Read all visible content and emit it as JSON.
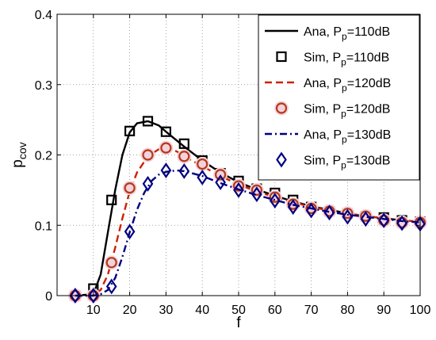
{
  "chart_data": {
    "type": "line",
    "xlabel": "f",
    "ylabel": "p",
    "ylabel_sub": "cov",
    "xlim": [
      0,
      100
    ],
    "ylim": [
      0,
      0.4
    ],
    "xticks": [
      10,
      20,
      30,
      40,
      50,
      60,
      70,
      80,
      90,
      100
    ],
    "yticks": [
      0,
      0.1,
      0.2,
      0.3,
      0.4
    ],
    "ytick_labels": [
      "0",
      "0.1",
      "0.2",
      "0.3",
      "0.4"
    ],
    "grid": true,
    "legend_position": "top-right",
    "series": [
      {
        "name": "Ana, P_p=110dB",
        "label_main": "Ana, P",
        "label_sub": "p",
        "label_rest": "=110dB",
        "kind": "line",
        "style": "solid",
        "color": "#000000",
        "x": [
          5,
          10,
          12,
          14,
          16,
          18,
          20,
          22,
          25,
          28,
          30,
          35,
          40,
          45,
          50,
          55,
          60,
          65,
          70,
          75,
          80,
          85,
          90,
          95,
          100
        ],
        "y": [
          0,
          0.002,
          0.03,
          0.09,
          0.15,
          0.2,
          0.232,
          0.245,
          0.248,
          0.242,
          0.233,
          0.212,
          0.192,
          0.175,
          0.161,
          0.151,
          0.142,
          0.134,
          0.127,
          0.122,
          0.117,
          0.113,
          0.11,
          0.107,
          0.105
        ]
      },
      {
        "name": "Sim, P_p=110dB",
        "label_main": "Sim, P",
        "label_sub": "p",
        "label_rest": "=110dB",
        "kind": "marker",
        "marker": "square",
        "color": "#000000",
        "x": [
          5,
          10,
          15,
          20,
          25,
          30,
          35,
          40,
          45,
          50,
          55,
          60,
          65,
          70,
          75,
          80,
          85,
          90,
          95,
          100
        ],
        "y": [
          0,
          0.01,
          0.136,
          0.234,
          0.248,
          0.233,
          0.216,
          0.192,
          0.174,
          0.163,
          0.152,
          0.146,
          0.136,
          0.126,
          0.12,
          0.117,
          0.113,
          0.111,
          0.107,
          0.105
        ]
      },
      {
        "name": "Ana, P_p=120dB",
        "label_main": "Ana, P",
        "label_sub": "p",
        "label_rest": "=120dB",
        "kind": "line",
        "style": "dashed",
        "color": "#cc2200",
        "x": [
          5,
          10,
          12,
          14,
          16,
          18,
          20,
          22,
          25,
          28,
          30,
          33,
          35,
          40,
          45,
          50,
          55,
          60,
          65,
          70,
          75,
          80,
          85,
          90,
          95,
          100
        ],
        "y": [
          0,
          0.001,
          0.008,
          0.03,
          0.068,
          0.11,
          0.148,
          0.175,
          0.198,
          0.208,
          0.21,
          0.205,
          0.198,
          0.184,
          0.17,
          0.158,
          0.148,
          0.14,
          0.133,
          0.126,
          0.121,
          0.117,
          0.113,
          0.11,
          0.107,
          0.105
        ]
      },
      {
        "name": "Sim, P_p=120dB",
        "label_main": "Sim, P",
        "label_sub": "p",
        "label_rest": "=120dB",
        "kind": "marker",
        "marker": "circle",
        "color": "#b33a1a",
        "x": [
          5,
          10,
          15,
          20,
          25,
          30,
          35,
          40,
          45,
          50,
          55,
          60,
          65,
          70,
          75,
          80,
          85,
          90,
          95,
          100
        ],
        "y": [
          0,
          0,
          0.047,
          0.153,
          0.2,
          0.21,
          0.198,
          0.187,
          0.172,
          0.156,
          0.15,
          0.14,
          0.13,
          0.124,
          0.12,
          0.117,
          0.113,
          0.107,
          0.104,
          0.104
        ]
      },
      {
        "name": "Ana, P_p=130dB",
        "label_main": "Ana, P",
        "label_sub": "p",
        "label_rest": "=130dB",
        "kind": "line",
        "style": "dashdot",
        "color": "#000080",
        "x": [
          5,
          10,
          12,
          14,
          16,
          18,
          20,
          22,
          24,
          26,
          28,
          30,
          33,
          35,
          40,
          45,
          50,
          55,
          60,
          65,
          70,
          75,
          80,
          85,
          90,
          95,
          100
        ],
        "y": [
          0,
          0,
          0.002,
          0.008,
          0.025,
          0.055,
          0.09,
          0.122,
          0.146,
          0.163,
          0.172,
          0.176,
          0.178,
          0.177,
          0.17,
          0.16,
          0.151,
          0.143,
          0.136,
          0.129,
          0.124,
          0.119,
          0.115,
          0.112,
          0.109,
          0.106,
          0.104
        ]
      },
      {
        "name": "Sim, P_p=130dB",
        "label_main": "Sim, P",
        "label_sub": "p",
        "label_rest": "=130dB",
        "kind": "marker",
        "marker": "diamond",
        "color": "#000080",
        "x": [
          5,
          10,
          15,
          20,
          25,
          30,
          35,
          40,
          45,
          50,
          55,
          60,
          65,
          70,
          75,
          80,
          85,
          90,
          95,
          100
        ],
        "y": [
          0,
          0,
          0.013,
          0.091,
          0.159,
          0.178,
          0.177,
          0.168,
          0.161,
          0.15,
          0.144,
          0.135,
          0.126,
          0.121,
          0.118,
          0.112,
          0.109,
          0.107,
          0.103,
          0.102
        ]
      }
    ]
  }
}
